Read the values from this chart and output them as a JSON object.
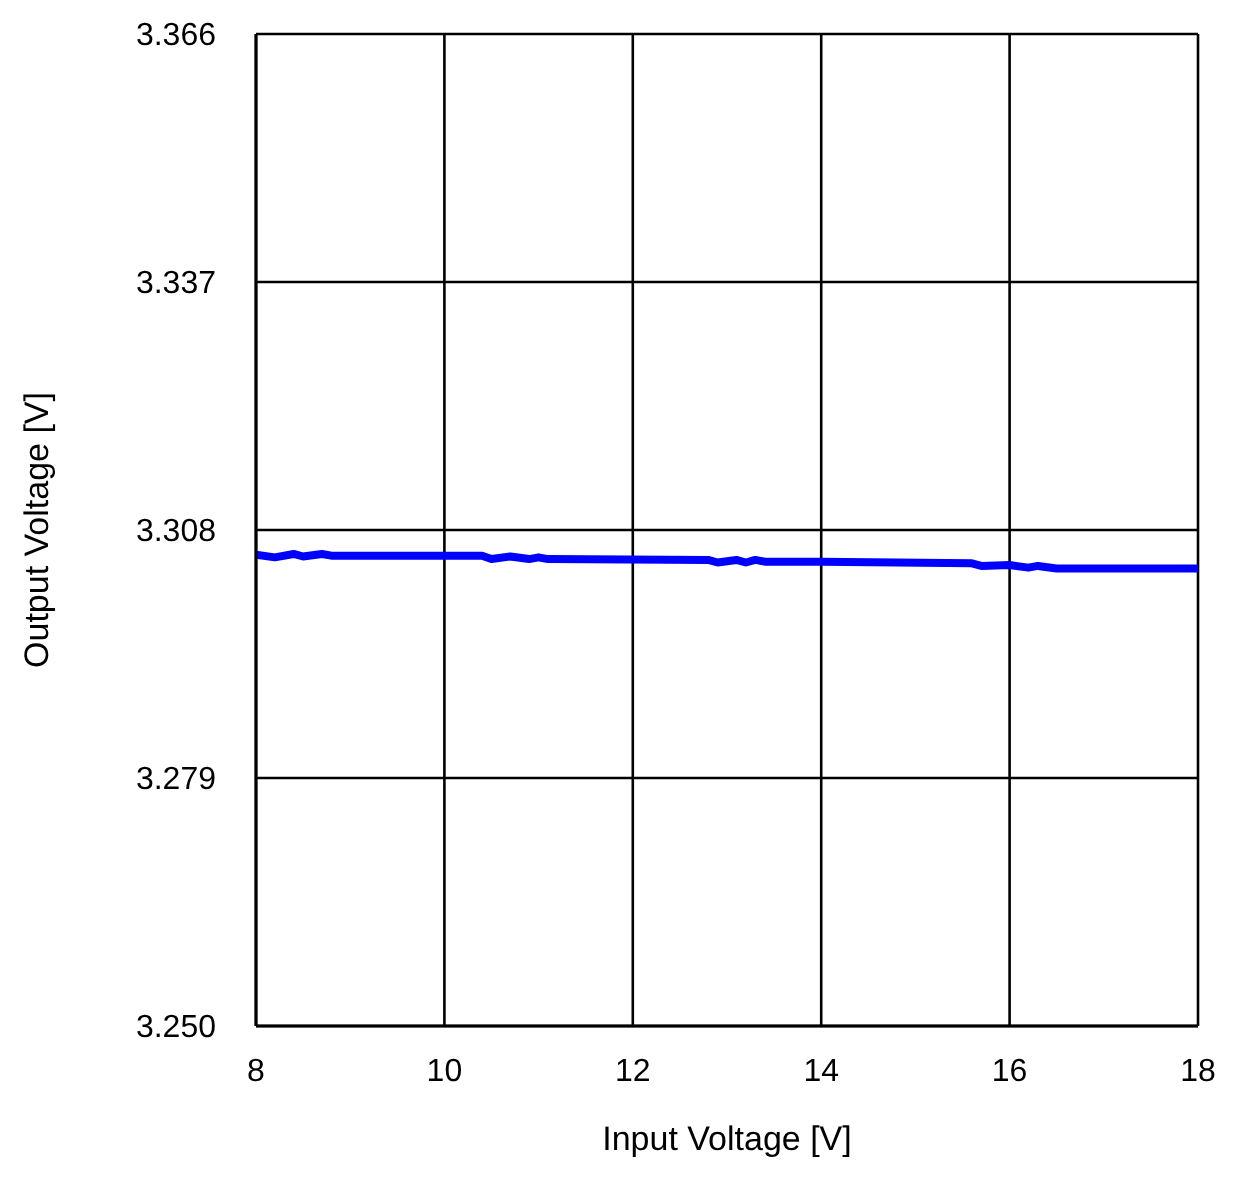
{
  "chart_data": {
    "type": "line",
    "xlabel": "Input Voltage [V]",
    "ylabel": "Output Voltage [V]",
    "x": [
      8,
      8.2,
      8.4,
      8.5,
      8.7,
      8.8,
      10.4,
      10.5,
      10.7,
      10.9,
      11.0,
      11.1,
      12.8,
      12.9,
      13.1,
      13.2,
      13.3,
      13.4,
      14.0,
      15.6,
      15.7,
      16.0,
      16.2,
      16.3,
      16.5,
      18
    ],
    "series": [
      {
        "color": "#0000ff",
        "values": [
          3.3051,
          3.3048,
          3.3052,
          3.3049,
          3.3052,
          3.305,
          3.305,
          3.3046,
          3.3049,
          3.3046,
          3.3048,
          3.3046,
          3.3045,
          3.3042,
          3.3045,
          3.3042,
          3.3045,
          3.3043,
          3.3043,
          3.3041,
          3.3038,
          3.3039,
          3.3036,
          3.3038,
          3.3035,
          3.3035
        ]
      }
    ],
    "xlim": [
      8,
      18
    ],
    "xticks": [
      8,
      10,
      12,
      14,
      16,
      18
    ],
    "ylim": [
      3.25,
      3.366
    ],
    "yticks": [
      {
        "value": 3.25,
        "label": "3.250"
      },
      3.279,
      3.308,
      3.337,
      3.366
    ],
    "grid": true,
    "marker": "none",
    "line_style": "solid",
    "legend": false
  }
}
